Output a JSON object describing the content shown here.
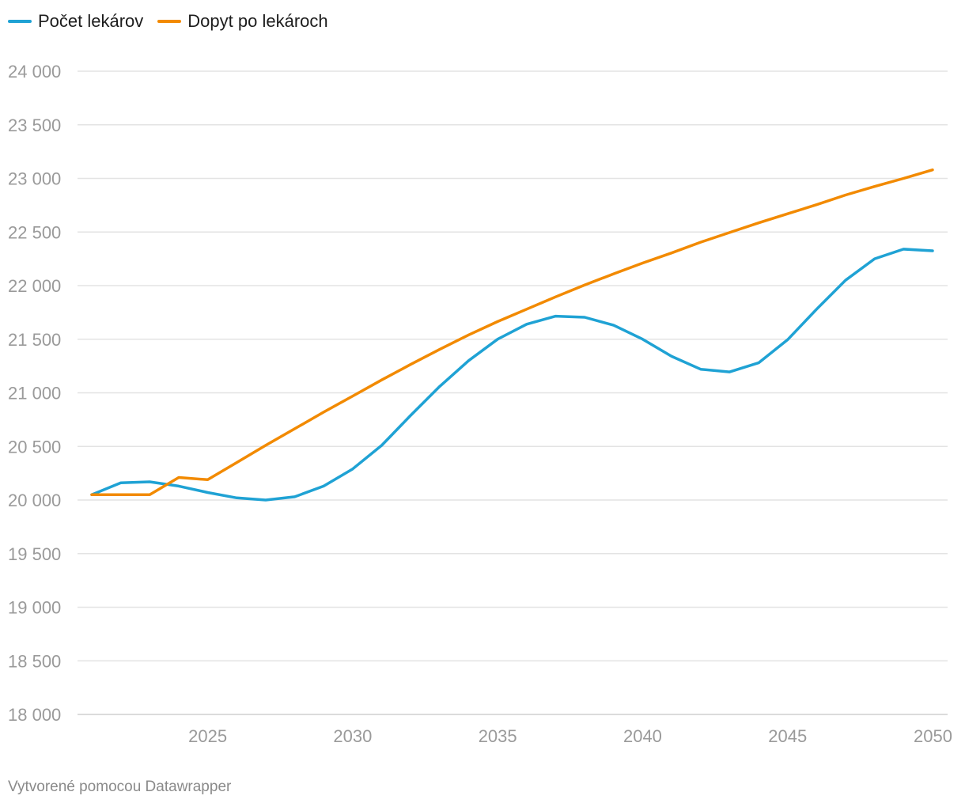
{
  "chart_data": {
    "type": "line",
    "title": "",
    "xlabel": "",
    "ylabel": "",
    "ylim": [
      18000,
      24000
    ],
    "xlim": [
      2021,
      2050
    ],
    "y_ticks": [
      {
        "value": 24000,
        "label": "24 000"
      },
      {
        "value": 23500,
        "label": "23 500"
      },
      {
        "value": 23000,
        "label": "23 000"
      },
      {
        "value": 22500,
        "label": "22 500"
      },
      {
        "value": 22000,
        "label": "22 000"
      },
      {
        "value": 21500,
        "label": "21 500"
      },
      {
        "value": 21000,
        "label": "21 000"
      },
      {
        "value": 20500,
        "label": "20 500"
      },
      {
        "value": 20000,
        "label": "20 000"
      },
      {
        "value": 19500,
        "label": "19 500"
      },
      {
        "value": 19000,
        "label": "19 000"
      },
      {
        "value": 18500,
        "label": "18 500"
      },
      {
        "value": 18000,
        "label": "18 000"
      }
    ],
    "x_ticks": [
      {
        "value": 2025,
        "label": "2025"
      },
      {
        "value": 2030,
        "label": "2030"
      },
      {
        "value": 2035,
        "label": "2035"
      },
      {
        "value": 2040,
        "label": "2040"
      },
      {
        "value": 2045,
        "label": "2045"
      },
      {
        "value": 2050,
        "label": "2050"
      }
    ],
    "x": [
      2021,
      2022,
      2023,
      2024,
      2025,
      2026,
      2027,
      2028,
      2029,
      2030,
      2031,
      2032,
      2033,
      2034,
      2035,
      2036,
      2037,
      2038,
      2039,
      2040,
      2041,
      2042,
      2043,
      2044,
      2045,
      2046,
      2047,
      2048,
      2049,
      2050
    ],
    "series": [
      {
        "name": "Počet lekárov",
        "color": "#1fa2d4",
        "values": [
          20050,
          20160,
          20170,
          20130,
          20070,
          20020,
          20000,
          20030,
          20130,
          20290,
          20510,
          20790,
          21060,
          21300,
          21500,
          21640,
          21715,
          21705,
          21630,
          21500,
          21340,
          21220,
          21195,
          21280,
          21495,
          21780,
          22050,
          22250,
          22340,
          22325
        ]
      },
      {
        "name": "Dopyt po lekároch",
        "color": "#f28a00",
        "values": [
          20050,
          20050,
          20050,
          20210,
          20190,
          20350,
          20510,
          20665,
          20820,
          20970,
          21120,
          21265,
          21405,
          21540,
          21665,
          21780,
          21895,
          22005,
          22110,
          22210,
          22305,
          22405,
          22495,
          22585,
          22670,
          22755,
          22845,
          22925,
          23000,
          23080
        ]
      }
    ]
  },
  "footer": {
    "credit": "Vytvorené pomocou Datawrapper"
  }
}
